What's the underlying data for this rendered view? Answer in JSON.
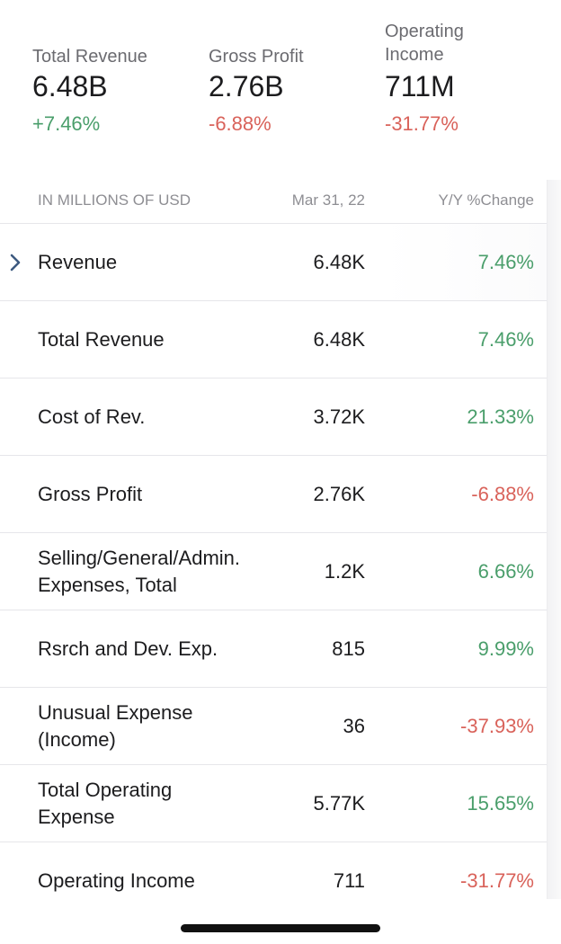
{
  "summary": {
    "metrics": [
      {
        "label": "Total Revenue",
        "value": "6.48B",
        "change": "+7.46%",
        "trend": "positive"
      },
      {
        "label": "Gross Profit",
        "value": "2.76B",
        "change": "-6.88%",
        "trend": "negative"
      },
      {
        "label": "Operating Income",
        "value": "711M",
        "change": "-31.77%",
        "trend": "negative"
      }
    ]
  },
  "table": {
    "headers": {
      "label": "IN MILLIONS OF USD",
      "date": "Mar 31, 22",
      "change": "Y/Y %Change"
    },
    "rows": [
      {
        "label": "Revenue",
        "value": "6.48K",
        "change": "7.46%",
        "trend": "positive",
        "expandable": true
      },
      {
        "label": "Total Revenue",
        "value": "6.48K",
        "change": "7.46%",
        "trend": "positive"
      },
      {
        "label": "Cost of Rev.",
        "value": "3.72K",
        "change": "21.33%",
        "trend": "positive"
      },
      {
        "label": "Gross Profit",
        "value": "2.76K",
        "change": "-6.88%",
        "trend": "negative"
      },
      {
        "label": "Selling/General/Admin. Expenses, Total",
        "value": "1.2K",
        "change": "6.66%",
        "trend": "positive"
      },
      {
        "label": "Rsrch and Dev. Exp.",
        "value": "815",
        "change": "9.99%",
        "trend": "positive"
      },
      {
        "label": "Unusual Expense (Income)",
        "value": "36",
        "change": "-37.93%",
        "trend": "negative"
      },
      {
        "label": "Total Operating Expense",
        "value": "5.77K",
        "change": "15.65%",
        "trend": "positive"
      },
      {
        "label": "Operating Income",
        "value": "711",
        "change": "-31.77%",
        "trend": "negative"
      }
    ]
  },
  "colors": {
    "positive": "#4a9e6b",
    "negative": "#d9625a",
    "chevron": "#3d5a80"
  },
  "icons": {
    "expand": "chevron-right-icon"
  }
}
